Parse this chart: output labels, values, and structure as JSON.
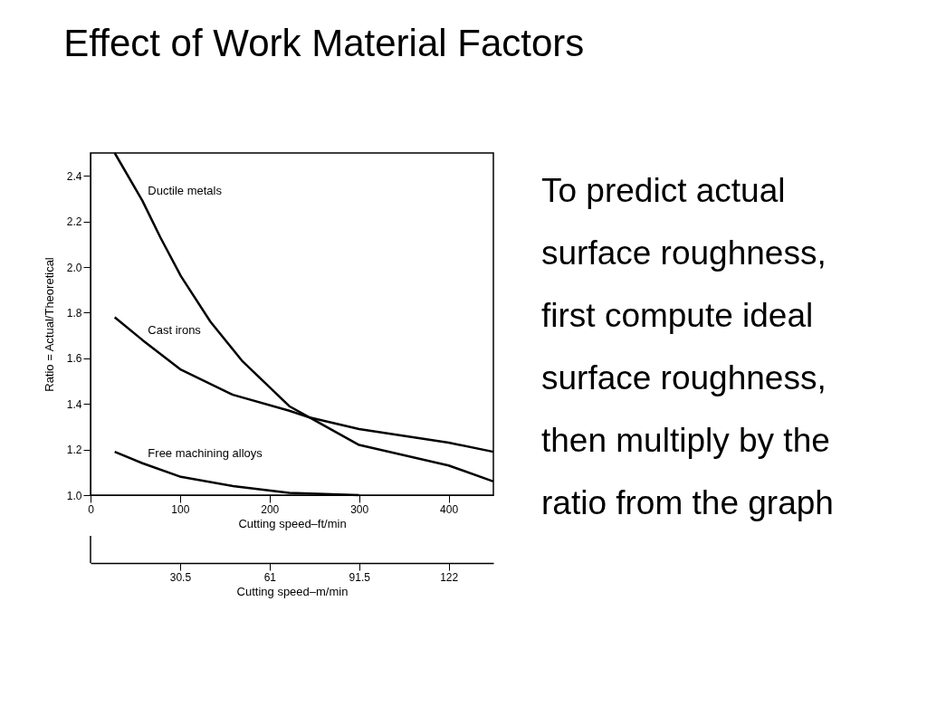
{
  "chart_data": {
    "type": "line",
    "title": "Effect of Work Material Factors",
    "xlabel": "Cutting speed–ft/min",
    "ylabel": "Ratio = Actual/Theoretical",
    "x2label": "Cutting speed–m/min",
    "xlim": [
      0,
      450
    ],
    "xticks": [
      0,
      100,
      200,
      300,
      400
    ],
    "x2lim": [
      0,
      137.2
    ],
    "x2ticks": [
      30.5,
      61,
      91.5,
      122
    ],
    "ylim": [
      1.0,
      2.5
    ],
    "yticks": [
      {
        "value": 1.0,
        "label": "1.0"
      },
      {
        "value": 1.2,
        "label": "1.2"
      },
      {
        "value": 1.4,
        "label": "1.4"
      },
      {
        "value": 1.6,
        "label": "1.6"
      },
      {
        "value": 1.8,
        "label": "1.8"
      },
      {
        "value": 2.0,
        "label": "2.0"
      },
      {
        "value": 2.2,
        "label": "2.2"
      },
      {
        "value": 2.4,
        "label": "2.4"
      }
    ],
    "grid": false,
    "marker": "none",
    "line_style": "solid",
    "series": [
      {
        "name": "Ductile metals",
        "color": "#000000",
        "x": [
          27,
          58,
          78,
          101,
          134,
          169,
          222,
          245,
          300,
          400,
          450
        ],
        "values": [
          2.5,
          2.29,
          2.13,
          1.96,
          1.76,
          1.59,
          1.39,
          1.34,
          1.22,
          1.13,
          1.06
        ]
      },
      {
        "name": "Cast irons",
        "color": "#000000",
        "x": [
          27,
          58,
          101,
          159,
          222,
          245,
          300,
          400,
          450
        ],
        "values": [
          1.78,
          1.68,
          1.55,
          1.44,
          1.37,
          1.34,
          1.29,
          1.23,
          1.19
        ]
      },
      {
        "name": "Free machining alloys",
        "color": "#000000",
        "x": [
          27,
          58,
          101,
          159,
          222,
          300
        ],
        "values": [
          1.19,
          1.14,
          1.08,
          1.04,
          1.01,
          1.0
        ]
      }
    ],
    "annotations": [
      "To predict actual surface roughness, first compute ideal surface roughness, then multiply by the ratio from the graph"
    ]
  }
}
